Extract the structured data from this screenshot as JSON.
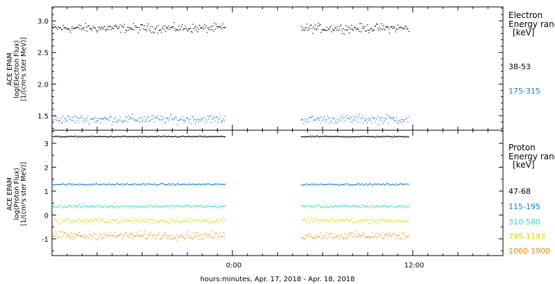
{
  "xlabel": "hours:minutes, Apr. 17, 2018 - Apr. 18, 2018",
  "x_ticks": [
    "0:00",
    "12:00"
  ],
  "chart_data": [
    {
      "type": "scatter",
      "panel": "electron",
      "ylabel_lines": [
        "ACE EPAM",
        "log(Electron Flux)",
        "[1/(cm²s ster MeV)]"
      ],
      "y_ticks": [
        "1.5",
        "2.0",
        "2.5",
        "3.0"
      ],
      "ylim": [
        1.27,
        3.22
      ],
      "xlim_hours": [
        -12,
        18
      ],
      "data_gap_hours": [
        -0.5,
        4.5
      ],
      "legend_title": [
        "Electron",
        "Energy range",
        "[keV]"
      ],
      "series": [
        {
          "name": "38-53",
          "level": 2.89,
          "spread": 0.05,
          "color": "#000000"
        },
        {
          "name": "175-315",
          "level": 1.45,
          "spread": 0.05,
          "color": "#1f78c8"
        }
      ]
    },
    {
      "type": "scatter",
      "panel": "proton",
      "ylabel_lines": [
        "ACE EPAM",
        "log(Proton Flux)",
        "[1/(cm²s ster MeV)]"
      ],
      "y_ticks": [
        "-1",
        "0",
        "1",
        "2",
        "3"
      ],
      "ylim": [
        -1.7,
        3.55
      ],
      "xlim_hours": [
        -12,
        18
      ],
      "data_gap_hours": [
        -0.5,
        4.5
      ],
      "legend_title": [
        "Proton",
        "Energy range",
        "[keV]"
      ],
      "series": [
        {
          "name": "47-68",
          "level": 3.3,
          "spread": 0.02,
          "color": "#000000"
        },
        {
          "name": "115-195",
          "level": 1.3,
          "spread": 0.03,
          "color": "#1f78c8"
        },
        {
          "name": "310-580",
          "level": 0.38,
          "spread": 0.05,
          "color": "#2ad8d0"
        },
        {
          "name": "795-1193",
          "level": -0.22,
          "spread": 0.08,
          "color": "#d8d800"
        },
        {
          "name": "1060-1900",
          "level": -0.85,
          "spread": 0.12,
          "color": "#e88a00"
        }
      ]
    }
  ]
}
